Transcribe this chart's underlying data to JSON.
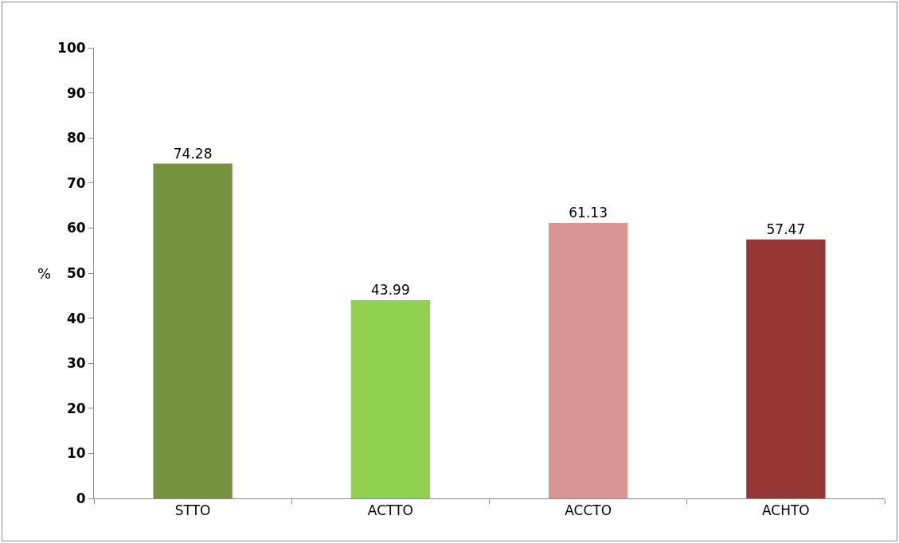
{
  "chart_data": {
    "type": "bar",
    "ylabel": "%",
    "categories": [
      "STTO",
      "ACTTO",
      "ACCTO",
      "ACHTO"
    ],
    "values": [
      74.28,
      43.99,
      61.13,
      57.47
    ],
    "colors": [
      "#76923c",
      "#92d050",
      "#d99694",
      "#953735"
    ],
    "ylim": [
      0,
      100
    ],
    "yticks": [
      0,
      10,
      20,
      30,
      40,
      50,
      60,
      70,
      80,
      90,
      100
    ],
    "grid": false,
    "legend": false,
    "data_labels": true
  }
}
